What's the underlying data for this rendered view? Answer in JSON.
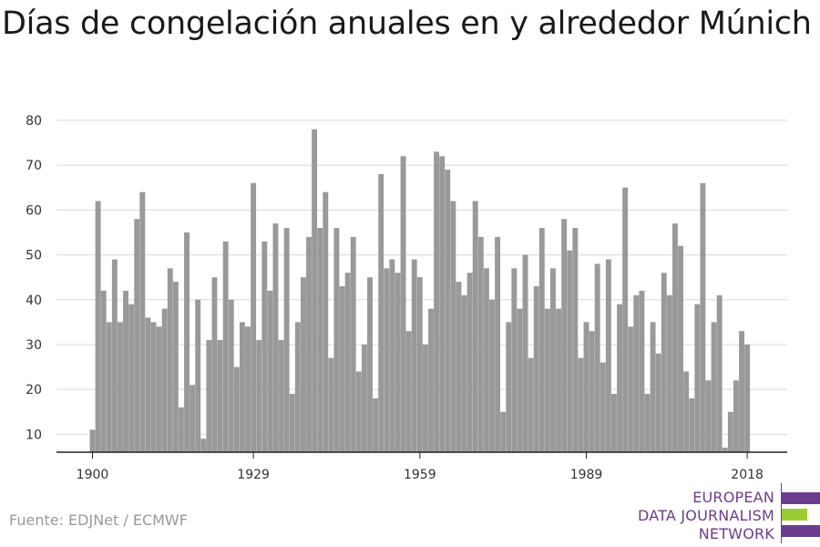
{
  "title": "Días de congelación anuales en y alrededor Múnich",
  "source": "Fuente: EDJNet / ECMWF",
  "logo": {
    "lines": [
      "EUROPEAN",
      "DATA JOURNALISM",
      "NETWORK"
    ],
    "colors": {
      "purple": "#6b3d8f",
      "green": "#9acd32"
    }
  },
  "chart_data": {
    "type": "bar",
    "title": "Días de congelación anuales en y alrededor Múnich",
    "xlabel": "",
    "ylabel": "",
    "bar_color": "#999999",
    "grid": true,
    "ylim": [
      5,
      82
    ],
    "yticks": [
      10,
      20,
      30,
      40,
      50,
      60,
      70,
      80
    ],
    "xticks": [
      1900,
      1929,
      1959,
      1989,
      2018
    ],
    "x": [
      1900,
      1901,
      1902,
      1903,
      1904,
      1905,
      1906,
      1907,
      1908,
      1909,
      1910,
      1911,
      1912,
      1913,
      1914,
      1915,
      1916,
      1917,
      1918,
      1919,
      1920,
      1921,
      1922,
      1923,
      1924,
      1925,
      1926,
      1927,
      1928,
      1929,
      1930,
      1931,
      1932,
      1933,
      1934,
      1935,
      1936,
      1937,
      1938,
      1939,
      1940,
      1941,
      1942,
      1943,
      1944,
      1945,
      1946,
      1947,
      1948,
      1949,
      1950,
      1951,
      1952,
      1953,
      1954,
      1955,
      1956,
      1957,
      1958,
      1959,
      1960,
      1961,
      1962,
      1963,
      1964,
      1965,
      1966,
      1967,
      1968,
      1969,
      1970,
      1971,
      1972,
      1973,
      1974,
      1975,
      1976,
      1977,
      1978,
      1979,
      1980,
      1981,
      1982,
      1983,
      1984,
      1985,
      1986,
      1987,
      1988,
      1989,
      1990,
      1991,
      1992,
      1993,
      1994,
      1995,
      1996,
      1997,
      1998,
      1999,
      2000,
      2001,
      2002,
      2003,
      2004,
      2005,
      2006,
      2007,
      2008,
      2009,
      2010,
      2011,
      2012,
      2013,
      2014,
      2015,
      2016,
      2017,
      2018
    ],
    "values": [
      11,
      62,
      42,
      35,
      49,
      35,
      42,
      39,
      58,
      64,
      36,
      35,
      34,
      38,
      47,
      44,
      16,
      55,
      21,
      40,
      9,
      31,
      45,
      31,
      53,
      40,
      25,
      35,
      34,
      66,
      31,
      53,
      42,
      57,
      31,
      56,
      19,
      35,
      45,
      54,
      78,
      56,
      64,
      27,
      56,
      43,
      46,
      54,
      24,
      30,
      45,
      18,
      68,
      47,
      49,
      46,
      72,
      33,
      49,
      45,
      30,
      38,
      73,
      72,
      69,
      62,
      44,
      41,
      46,
      62,
      54,
      47,
      40,
      54,
      15,
      35,
      47,
      38,
      50,
      27,
      43,
      56,
      38,
      47,
      38,
      58,
      51,
      56,
      27,
      35,
      33,
      48,
      26,
      49,
      19,
      39,
      65,
      34,
      41,
      42,
      19,
      35,
      28,
      46,
      41,
      57,
      52,
      24,
      18,
      39,
      66,
      22,
      35,
      41,
      7,
      15,
      22,
      33,
      30
    ]
  }
}
